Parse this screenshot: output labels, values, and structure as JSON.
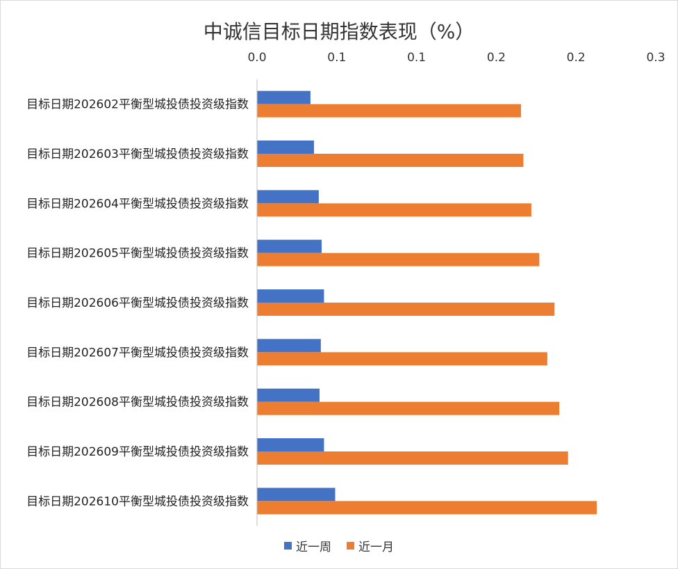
{
  "chart_data": {
    "type": "bar",
    "orientation": "horizontal",
    "title": "中诚信目标日期指数表现（%）",
    "xlabel": "",
    "ylabel": "",
    "xaxis_position": "top",
    "xlim": [
      0,
      0.25
    ],
    "tick_values": [
      0,
      0.05,
      0.1,
      0.15,
      0.2,
      0.25
    ],
    "tick_labels": [
      "0.0",
      "0.1",
      "0.1",
      "0.2",
      "0.2",
      "0.3"
    ],
    "grid": false,
    "legend_position": "bottom",
    "categories": [
      "目标日期202602平衡型城投债投资级指数",
      "目标日期202603平衡型城投债投资级指数",
      "目标日期202604平衡型城投债投资级指数",
      "目标日期202605平衡型城投债投资级指数",
      "目标日期202606平衡型城投债投资级指数",
      "目标日期202607平衡型城投债投资级指数",
      "目标日期202608平衡型城投债投资级指数",
      "目标日期202609平衡型城投债投资级指数",
      "目标日期202610平衡型城投债投资级指数"
    ],
    "series": [
      {
        "name": "近一周",
        "color": "#4472C4",
        "values": [
          0.0335,
          0.0357,
          0.0387,
          0.0405,
          0.042,
          0.04,
          0.0392,
          0.042,
          0.049
        ]
      },
      {
        "name": "近一月",
        "color": "#ED7D31",
        "values": [
          0.1655,
          0.167,
          0.172,
          0.177,
          0.1865,
          0.182,
          0.1895,
          0.195,
          0.213
        ]
      }
    ]
  }
}
